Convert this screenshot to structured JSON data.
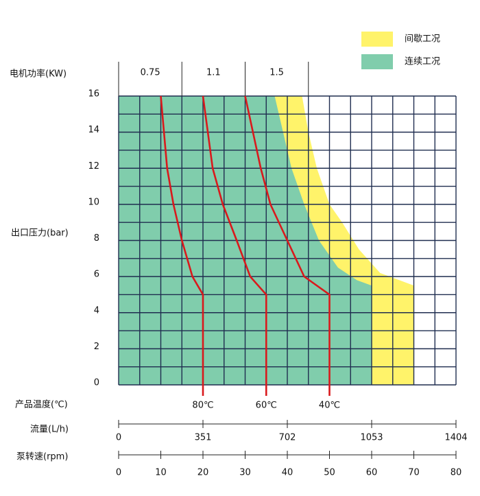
{
  "chart_data": {
    "type": "performance",
    "power_label": "电机功率(KW)",
    "power_bands": {
      "labels": [
        "0.75",
        "1.1",
        "1.5"
      ],
      "rpm_edges": [
        0,
        15,
        30,
        45
      ]
    },
    "y_label": "出口压力(bar)",
    "ylim": [
      0,
      16
    ],
    "yticks": [
      0,
      2,
      4,
      6,
      8,
      10,
      12,
      14,
      16
    ],
    "xgrid": [
      0,
      5,
      10,
      15,
      20,
      25,
      30,
      35,
      40,
      45,
      50,
      55,
      60,
      65,
      70,
      75,
      80
    ],
    "ygrid": [
      0,
      1,
      2,
      3,
      4,
      5,
      6,
      7,
      8,
      9,
      10,
      11,
      12,
      13,
      14,
      15,
      16
    ],
    "grid_color": "#1f2d4f",
    "regions": [
      {
        "name": "间歇工况",
        "color": "#fff36a",
        "x": [
          43.5,
          45,
          47,
          50,
          53,
          57,
          62,
          70,
          70
        ],
        "y": [
          16,
          14,
          12,
          10,
          9,
          7.5,
          6.2,
          5.5,
          0
        ]
      },
      {
        "name": "连续工况",
        "color": "#80cdac",
        "x": [
          37,
          39,
          41,
          44,
          47.5,
          52,
          56.5,
          60,
          60
        ],
        "y": [
          16,
          14,
          12,
          10,
          8,
          6.5,
          5.8,
          5.5,
          0
        ]
      }
    ],
    "temperature_label": "产品温度(℃)",
    "curves": [
      {
        "name": "80℃",
        "color": "#d9191c",
        "x": [
          10,
          11.5,
          13,
          15,
          17.5,
          20,
          20
        ],
        "y": [
          16,
          12,
          10,
          8,
          6,
          5,
          0
        ]
      },
      {
        "name": "60℃",
        "color": "#d9191c",
        "x": [
          20,
          22.3,
          24.7,
          28,
          31.2,
          35,
          35
        ],
        "y": [
          16,
          12,
          10,
          8,
          6,
          5,
          0
        ]
      },
      {
        "name": "40℃",
        "color": "#d9191c",
        "x": [
          30,
          33.7,
          36,
          40,
          44,
          50,
          50
        ],
        "y": [
          16,
          12,
          10,
          8,
          6,
          5,
          0
        ]
      }
    ],
    "flow_label": "流量(L/h)",
    "flow_xlim": [
      0,
      1404
    ],
    "flow_xticks": [
      0,
      351,
      702,
      1053,
      1404
    ],
    "rpm_label": "泵转速(rpm)",
    "xlim": [
      0,
      80
    ],
    "xticks": [
      0,
      10,
      20,
      30,
      40,
      50,
      60,
      70,
      80
    ]
  }
}
